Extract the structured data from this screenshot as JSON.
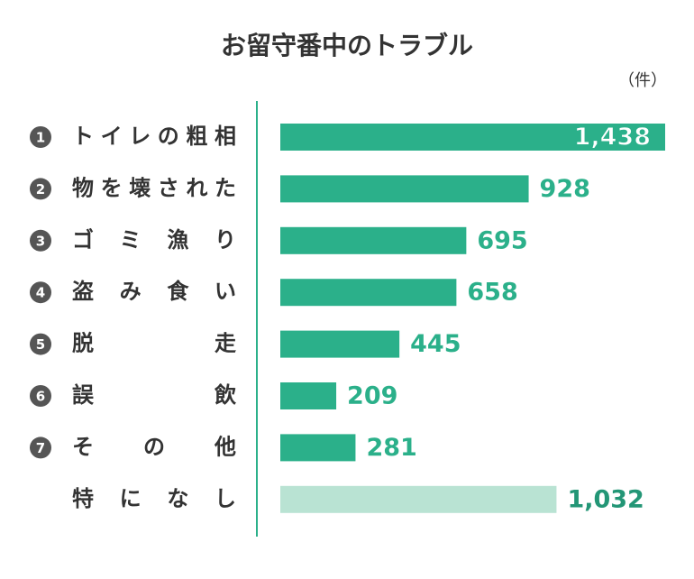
{
  "chart_data": {
    "type": "hbar",
    "title": "お留守番中のトラブル",
    "unit": "（件）",
    "ranks": [
      "1",
      "2",
      "3",
      "4",
      "5",
      "6",
      "7",
      null
    ],
    "categories": [
      "トイレの粗相",
      "物を壊された",
      "ゴミ漁り",
      "盗み食い",
      "脱走",
      "誤飲",
      "その他",
      "特になし"
    ],
    "values": [
      1438,
      928,
      695,
      658,
      445,
      209,
      281,
      1032
    ],
    "value_labels": [
      "1,438",
      "928",
      "695",
      "658",
      "445",
      "209",
      "281",
      "1,032"
    ],
    "colors": [
      "#2bb08a",
      "#2bb08a",
      "#2bb08a",
      "#2bb08a",
      "#2bb08a",
      "#2bb08a",
      "#2bb08a",
      "#b9e3d3"
    ]
  }
}
